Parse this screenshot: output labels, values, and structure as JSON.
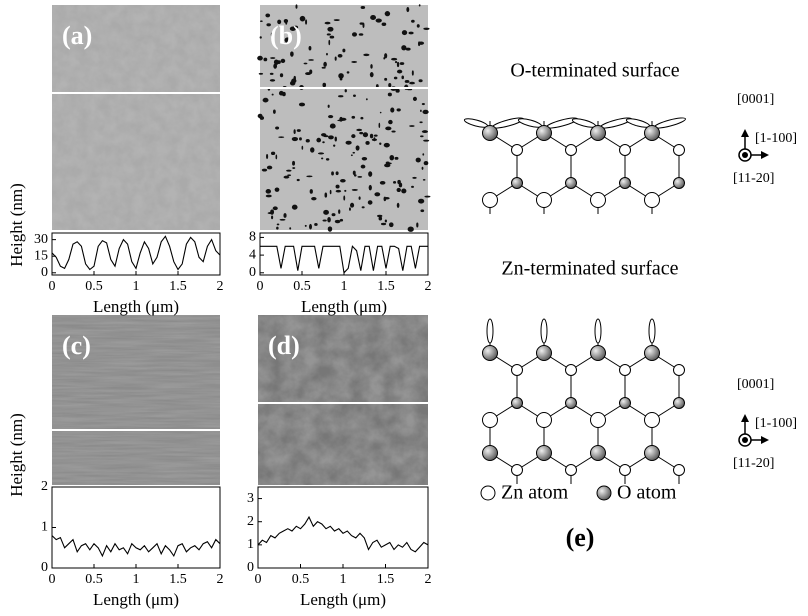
{
  "chart_data": [
    {
      "type": "line",
      "panel_label": "(a)",
      "ylabel": "Height (nm)",
      "xlabel": "Length (μm)",
      "xlim": [
        0,
        2
      ],
      "xticks": [
        0,
        0.5,
        1,
        1.5,
        2
      ],
      "ylim": [
        -2,
        36
      ],
      "yticks": [
        0,
        15,
        30
      ],
      "x": [
        0,
        0.05,
        0.1,
        0.15,
        0.2,
        0.25,
        0.3,
        0.35,
        0.4,
        0.45,
        0.5,
        0.55,
        0.6,
        0.65,
        0.7,
        0.75,
        0.8,
        0.85,
        0.9,
        0.95,
        1,
        1.05,
        1.1,
        1.15,
        1.2,
        1.25,
        1.3,
        1.35,
        1.4,
        1.45,
        1.5,
        1.55,
        1.6,
        1.65,
        1.7,
        1.75,
        1.8,
        1.85,
        1.9,
        1.95,
        2
      ],
      "values": [
        18,
        14,
        6,
        4,
        12,
        26,
        28,
        24,
        8,
        3,
        6,
        24,
        29,
        27,
        12,
        6,
        22,
        30,
        26,
        10,
        4,
        18,
        28,
        22,
        8,
        14,
        28,
        33,
        24,
        10,
        3,
        8,
        26,
        32,
        28,
        14,
        10,
        24,
        30,
        20,
        16
      ],
      "color": "#000000"
    },
    {
      "type": "line",
      "panel_label": "(b)",
      "xlabel": "Length (μm)",
      "xlim": [
        0,
        2
      ],
      "xticks": [
        0,
        0.5,
        1,
        1.5,
        2
      ],
      "ylim": [
        -0.5,
        9
      ],
      "yticks": [
        0,
        4,
        8
      ],
      "x": [
        0,
        0.05,
        0.1,
        0.15,
        0.2,
        0.25,
        0.3,
        0.35,
        0.4,
        0.45,
        0.5,
        0.55,
        0.6,
        0.65,
        0.7,
        0.75,
        0.8,
        0.85,
        0.9,
        0.95,
        1,
        1.05,
        1.1,
        1.15,
        1.2,
        1.25,
        1.3,
        1.35,
        1.4,
        1.45,
        1.5,
        1.55,
        1.6,
        1.65,
        1.7,
        1.75,
        1.8,
        1.85,
        1.9,
        1.95,
        2
      ],
      "values": [
        6,
        6,
        6,
        6,
        6,
        1,
        6,
        6,
        6,
        0.5,
        6,
        6,
        6,
        6,
        1,
        6,
        6,
        6,
        6,
        6,
        0,
        1,
        6,
        5,
        0.5,
        6,
        6,
        0.5,
        6,
        6,
        1,
        6,
        6,
        5.5,
        0.5,
        6,
        6,
        1,
        6,
        6,
        6
      ],
      "color": "#000000"
    },
    {
      "type": "line",
      "panel_label": "(c)",
      "ylabel": "Height (nm)",
      "xlabel": "Length (μm)",
      "xlim": [
        0,
        2
      ],
      "xticks": [
        0,
        0.5,
        1,
        1.5,
        2
      ],
      "ylim": [
        0,
        2
      ],
      "yticks": [
        0,
        1,
        2
      ],
      "x": [
        0,
        0.05,
        0.1,
        0.15,
        0.2,
        0.25,
        0.3,
        0.35,
        0.4,
        0.45,
        0.5,
        0.55,
        0.6,
        0.65,
        0.7,
        0.75,
        0.8,
        0.85,
        0.9,
        0.95,
        1,
        1.05,
        1.1,
        1.15,
        1.2,
        1.25,
        1.3,
        1.35,
        1.4,
        1.45,
        1.5,
        1.55,
        1.6,
        1.65,
        1.7,
        1.75,
        1.8,
        1.85,
        1.9,
        1.95,
        2
      ],
      "values": [
        0.8,
        0.7,
        0.75,
        0.5,
        0.6,
        0.7,
        0.4,
        0.55,
        0.6,
        0.45,
        0.6,
        0.5,
        0.3,
        0.55,
        0.4,
        0.6,
        0.45,
        0.5,
        0.35,
        0.6,
        0.5,
        0.45,
        0.55,
        0.4,
        0.5,
        0.6,
        0.35,
        0.55,
        0.45,
        0.3,
        0.55,
        0.6,
        0.4,
        0.5,
        0.55,
        0.45,
        0.6,
        0.65,
        0.5,
        0.7,
        0.6
      ],
      "color": "#000000"
    },
    {
      "type": "line",
      "panel_label": "(d)",
      "xlabel": "Length (μm)",
      "xlim": [
        0,
        2
      ],
      "xticks": [
        0,
        0.5,
        1,
        1.5,
        2
      ],
      "ylim": [
        0,
        3.5
      ],
      "yticks": [
        0,
        1,
        2,
        3
      ],
      "x": [
        0,
        0.05,
        0.1,
        0.15,
        0.2,
        0.25,
        0.3,
        0.35,
        0.4,
        0.45,
        0.5,
        0.55,
        0.6,
        0.65,
        0.7,
        0.75,
        0.8,
        0.85,
        0.9,
        0.95,
        1,
        1.05,
        1.1,
        1.15,
        1.2,
        1.25,
        1.3,
        1.35,
        1.4,
        1.45,
        1.5,
        1.55,
        1.6,
        1.65,
        1.7,
        1.75,
        1.8,
        1.85,
        1.9,
        1.95,
        2
      ],
      "values": [
        1.0,
        1.2,
        1.1,
        1.4,
        1.3,
        1.5,
        1.6,
        1.7,
        1.6,
        1.8,
        1.7,
        1.9,
        2.2,
        1.8,
        2.0,
        1.9,
        1.7,
        1.8,
        1.6,
        1.7,
        1.5,
        1.6,
        1.4,
        1.3,
        1.5,
        1.3,
        0.8,
        1.1,
        1.2,
        0.9,
        1.0,
        1.1,
        0.8,
        1.0,
        0.9,
        1.1,
        0.8,
        0.7,
        0.9,
        1.1,
        1.0
      ],
      "color": "#000000"
    }
  ],
  "schematic": {
    "o_title": "O-terminated surface",
    "zn_title": "Zn-terminated surface",
    "o_axes": [
      "[0001]",
      "[1-100]",
      "[11-20]"
    ],
    "zn_axes": [
      "[0001]",
      "[1-100]",
      "[11-20]"
    ],
    "zn_legend": "Zn atom",
    "o_legend": "O atom",
    "label": "(e)"
  }
}
